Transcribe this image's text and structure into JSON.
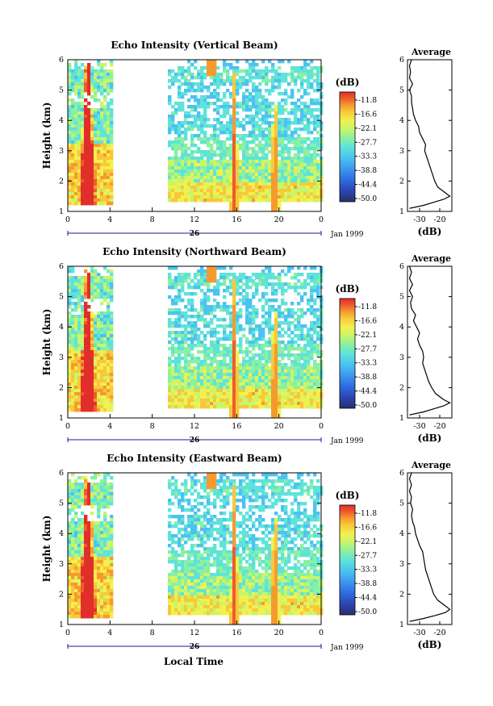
{
  "figure": {
    "shared_xlabel": "Local Time",
    "date_label": "Jan 1999",
    "day_label": "26"
  },
  "chart_data": [
    {
      "type": "heatmap",
      "title": "Echo Intensity (Vertical Beam)",
      "xlabel": "",
      "ylabel": "Height (km)",
      "xticks": [
        "0",
        "4",
        "8",
        "12",
        "16",
        "20",
        "0"
      ],
      "yticks": [
        "1",
        "2",
        "3",
        "4",
        "5",
        "6"
      ],
      "xlim": [
        0,
        24
      ],
      "ylim": [
        1,
        6
      ],
      "day_label": "26",
      "date_label": "Jan 1999",
      "colorbar": {
        "label": "(dB)",
        "ticks": [
          "-11.8",
          "-16.6",
          "-22.1",
          "-27.7",
          "-33.3",
          "-38.8",
          "-44.4",
          "-50.0"
        ]
      },
      "average_profile": {
        "title": "Average",
        "xlabel": "(dB)",
        "xticks": [
          "-30",
          "-20"
        ],
        "yticks": [
          "1",
          "2",
          "3",
          "4",
          "5",
          "6"
        ],
        "ylim": [
          1,
          6
        ],
        "height_km": [
          1.1,
          1.2,
          1.3,
          1.4,
          1.5,
          1.6,
          1.8,
          2.0,
          2.2,
          2.4,
          2.6,
          2.8,
          3.0,
          3.2,
          3.4,
          3.6,
          3.8,
          4.0,
          4.2,
          4.4,
          4.6,
          4.8,
          5.0,
          5.2,
          5.4,
          5.6,
          5.8,
          6.0
        ],
        "db": [
          -35,
          -28,
          -23,
          -18,
          -15,
          -17,
          -21,
          -22.5,
          -23.5,
          -24.5,
          -25.5,
          -26.5,
          -27.5,
          -27,
          -28.5,
          -30,
          -30.5,
          -32,
          -33,
          -33.5,
          -34,
          -34,
          -35,
          -33.5,
          -35,
          -34.5,
          -35,
          -34
        ]
      }
    },
    {
      "type": "heatmap",
      "title": "Echo Intensity (Northward Beam)",
      "xlabel": "",
      "ylabel": "Height (km)",
      "xticks": [
        "0",
        "4",
        "8",
        "12",
        "16",
        "20",
        "0"
      ],
      "yticks": [
        "1",
        "2",
        "3",
        "4",
        "5",
        "6"
      ],
      "xlim": [
        0,
        24
      ],
      "ylim": [
        1,
        6
      ],
      "day_label": "26",
      "date_label": "Jan 1999",
      "colorbar": {
        "label": "(dB)",
        "ticks": [
          "-11.8",
          "-16.6",
          "-22.1",
          "-27.7",
          "-33.3",
          "-38.8",
          "-44.4",
          "-50.0"
        ]
      },
      "average_profile": {
        "title": "Average",
        "xlabel": "(dB)",
        "xticks": [
          "-30",
          "-20"
        ],
        "yticks": [
          "1",
          "2",
          "3",
          "4",
          "5",
          "6"
        ],
        "ylim": [
          1,
          6
        ],
        "height_km": [
          1.1,
          1.2,
          1.3,
          1.4,
          1.5,
          1.6,
          1.8,
          2.0,
          2.2,
          2.4,
          2.6,
          2.8,
          3.0,
          3.2,
          3.4,
          3.6,
          3.8,
          4.0,
          4.2,
          4.4,
          4.6,
          4.8,
          5.0,
          5.2,
          5.4,
          5.6,
          5.8,
          6.0
        ],
        "db": [
          -35,
          -28,
          -23,
          -18,
          -15,
          -18,
          -22,
          -24,
          -25.5,
          -26.5,
          -27.5,
          -28.5,
          -28,
          -28.5,
          -30,
          -31,
          -30,
          -31.5,
          -33,
          -32,
          -34,
          -34.5,
          -33.5,
          -35,
          -33.5,
          -35,
          -34,
          -35
        ]
      }
    },
    {
      "type": "heatmap",
      "title": "Echo Intensity (Eastward Beam)",
      "xlabel": "Local Time",
      "ylabel": "Height (km)",
      "xticks": [
        "0",
        "4",
        "8",
        "12",
        "16",
        "20",
        "0"
      ],
      "yticks": [
        "1",
        "2",
        "3",
        "4",
        "5",
        "6"
      ],
      "xlim": [
        0,
        24
      ],
      "ylim": [
        1,
        6
      ],
      "day_label": "26",
      "date_label": "Jan 1999",
      "colorbar": {
        "label": "(dB)",
        "ticks": [
          "-11.8",
          "-16.6",
          "-22.1",
          "-27.7",
          "-33.3",
          "-38.8",
          "-44.4",
          "-50.0"
        ]
      },
      "average_profile": {
        "title": "Average",
        "xlabel": "(dB)",
        "xticks": [
          "-30",
          "-20"
        ],
        "yticks": [
          "1",
          "2",
          "3",
          "4",
          "5",
          "6"
        ],
        "ylim": [
          1,
          6
        ],
        "height_km": [
          1.1,
          1.2,
          1.3,
          1.4,
          1.5,
          1.6,
          1.8,
          2.0,
          2.2,
          2.4,
          2.6,
          2.8,
          3.0,
          3.2,
          3.4,
          3.6,
          3.8,
          4.0,
          4.2,
          4.4,
          4.6,
          4.8,
          5.0,
          5.2,
          5.4,
          5.6,
          5.8,
          6.0
        ],
        "db": [
          -35,
          -28,
          -22,
          -17,
          -15,
          -17,
          -21,
          -23,
          -24,
          -25,
          -26,
          -27,
          -27.5,
          -28,
          -28.5,
          -30,
          -31,
          -32,
          -32.5,
          -33.5,
          -34,
          -33.5,
          -34.5,
          -34,
          -35,
          -34,
          -35,
          -34
        ]
      }
    }
  ],
  "colormap": [
    "#2a2f6e",
    "#2b46b0",
    "#2f6ce0",
    "#3d97f0",
    "#4cc3ef",
    "#5fe3d9",
    "#8bf0a0",
    "#c8f56a",
    "#f2f04e",
    "#f8c83a",
    "#f69a30",
    "#ee5c2c",
    "#e02e2a"
  ]
}
